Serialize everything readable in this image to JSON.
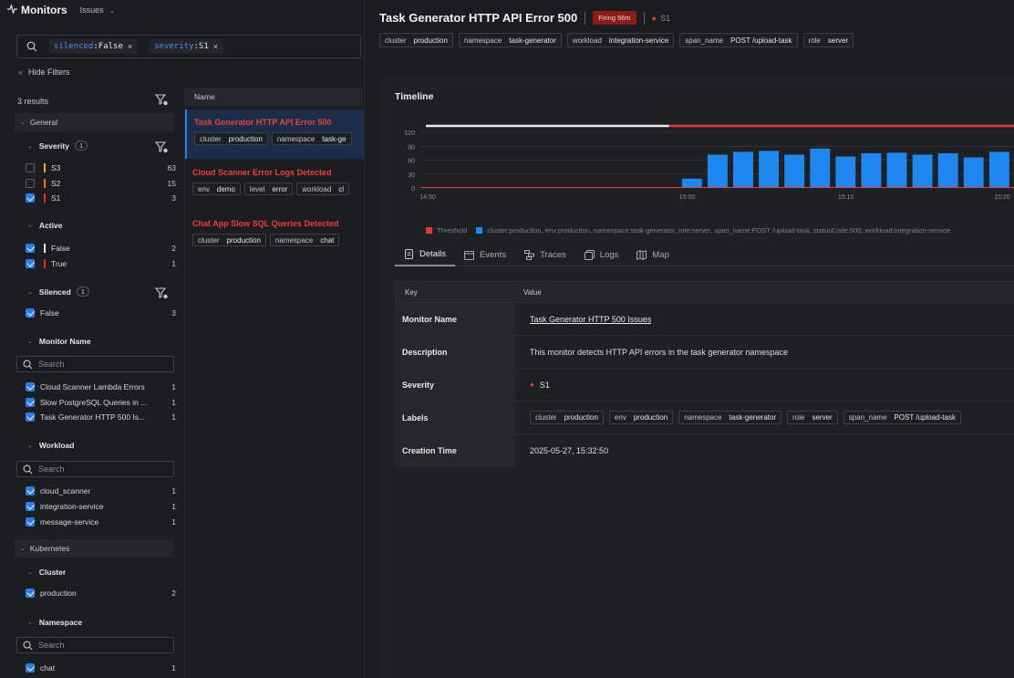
{
  "topbar": {
    "brand": "Monitors",
    "issues_label": "Issues"
  },
  "filterbar": {
    "chips": [
      {
        "key": "silenced",
        "value": "False",
        "remove": "×"
      },
      {
        "key": "severity",
        "value": "S1",
        "remove": "×"
      }
    ]
  },
  "hide_filters_label": "Hide Filters",
  "results_label": "3 results",
  "filters": {
    "general": {
      "label": "General"
    },
    "severity": {
      "label": "Severity",
      "count": "1",
      "options": [
        {
          "label": "S3",
          "count": "63",
          "checked": false,
          "color": "#f5a623"
        },
        {
          "label": "S2",
          "count": "15",
          "checked": false,
          "color": "#f2711c"
        },
        {
          "label": "S1",
          "count": "3",
          "checked": true,
          "color": "#e02b2b"
        }
      ]
    },
    "active": {
      "label": "Active",
      "options": [
        {
          "label": "False",
          "count": "2",
          "checked": true,
          "color": "#ffffff"
        },
        {
          "label": "True",
          "count": "1",
          "checked": true,
          "color": "#e02b2b"
        }
      ]
    },
    "silenced": {
      "label": "Silenced",
      "count": "1",
      "options": [
        {
          "label": "False",
          "count": "3",
          "checked": true
        }
      ]
    },
    "monitor_name": {
      "label": "Monitor Name",
      "search_placeholder": "Search",
      "options": [
        {
          "label": "Cloud Scanner Lambda Errors",
          "count": "1",
          "checked": true
        },
        {
          "label": "Slow PostgreSQL Queries in ...",
          "count": "1",
          "checked": true
        },
        {
          "label": "Task Generator HTTP 500 Is...",
          "count": "1",
          "checked": true
        }
      ]
    },
    "workload": {
      "label": "Workload",
      "search_placeholder": "Search",
      "options": [
        {
          "label": "cloud_scanner",
          "count": "1",
          "checked": true
        },
        {
          "label": "integration-service",
          "count": "1",
          "checked": true
        },
        {
          "label": "message-service",
          "count": "1",
          "checked": true
        }
      ]
    },
    "kubernetes": {
      "label": "Kubernetes"
    },
    "cluster": {
      "label": "Cluster",
      "options": [
        {
          "label": "production",
          "count": "2",
          "checked": true
        }
      ]
    },
    "namespace": {
      "label": "Namespace",
      "search_placeholder": "Search",
      "options": [
        {
          "label": "chat",
          "count": "1",
          "checked": true
        }
      ]
    }
  },
  "list": {
    "header": "Name",
    "monitors": [
      {
        "title": "Task Generator HTTP API Error 500",
        "selected": true,
        "tags": [
          {
            "k": "cluster",
            "v": "production"
          },
          {
            "k": "namespace",
            "v": "task-ge"
          }
        ]
      },
      {
        "title": "Cloud Scanner Error Logs Detected",
        "selected": false,
        "tags": [
          {
            "k": "env",
            "v": "demo"
          },
          {
            "k": "level",
            "v": "error"
          },
          {
            "k": "workload",
            "v": "cl"
          }
        ]
      },
      {
        "title": "Chat App Slow SQL Queries Detected",
        "selected": false,
        "tags": [
          {
            "k": "cluster",
            "v": "production"
          },
          {
            "k": "namespace",
            "v": "chat"
          }
        ]
      }
    ]
  },
  "detail": {
    "title": "Task Generator HTTP API Error 500",
    "firing": "Firing 56m",
    "severity": "S1",
    "tags": [
      {
        "k": "cluster",
        "v": "production"
      },
      {
        "k": "namespace",
        "v": "task-generator"
      },
      {
        "k": "workload",
        "v": "integration-service"
      },
      {
        "k": "span_name",
        "v": "POST /upload-task"
      },
      {
        "k": "role",
        "v": "server"
      }
    ],
    "timeline_label": "Timeline",
    "legend": {
      "threshold": "Threshold",
      "series": "cluster:production, env:production, namespace:task-generator, role:server, span_name:POST /upload-task, statusCode:500, workload:integration-service"
    },
    "tabs": [
      "Details",
      "Events",
      "Traces",
      "Logs",
      "Map"
    ],
    "table": {
      "key_header": "Key",
      "value_header": "Value",
      "monitor_name_key": "Monitor Name",
      "monitor_name": "Task Generator HTTP 500 Issues",
      "description_key": "Description",
      "description": "This monitor detects HTTP API errors in the task generator namespace",
      "severity_key": "Severity",
      "severity": "S1",
      "labels_key": "Labels",
      "labels": [
        {
          "k": "cluster",
          "v": "production"
        },
        {
          "k": "env",
          "v": "production"
        },
        {
          "k": "namespace",
          "v": "task-generator"
        },
        {
          "k": "role",
          "v": "server"
        },
        {
          "k": "span_name",
          "v": "POST /upload-task"
        }
      ],
      "creation_key": "Creation Time",
      "creation_time": "2025-05-27, 15:32:50"
    }
  },
  "colors": {
    "accent": "#2f7be8",
    "alert": "#ec3f3a",
    "bar": "#1e88f0"
  },
  "chart_data": {
    "type": "bar",
    "yticks": [
      "120",
      "90",
      "60",
      "30",
      "0"
    ],
    "ylim": [
      0,
      130
    ],
    "xticks": [
      "14:50",
      "15:00",
      "15:10",
      "15:20"
    ],
    "values": [
      0,
      0,
      0,
      0,
      0,
      0,
      0,
      0,
      0,
      0,
      20,
      72,
      78,
      80,
      72,
      85,
      68,
      75,
      76,
      72,
      75,
      66,
      78
    ],
    "threshold": 1,
    "series_name": "cluster:production, env:production, namespace:task-generator, role:server, span_name:POST /upload-task, statusCode:500, workload:integration-service"
  }
}
